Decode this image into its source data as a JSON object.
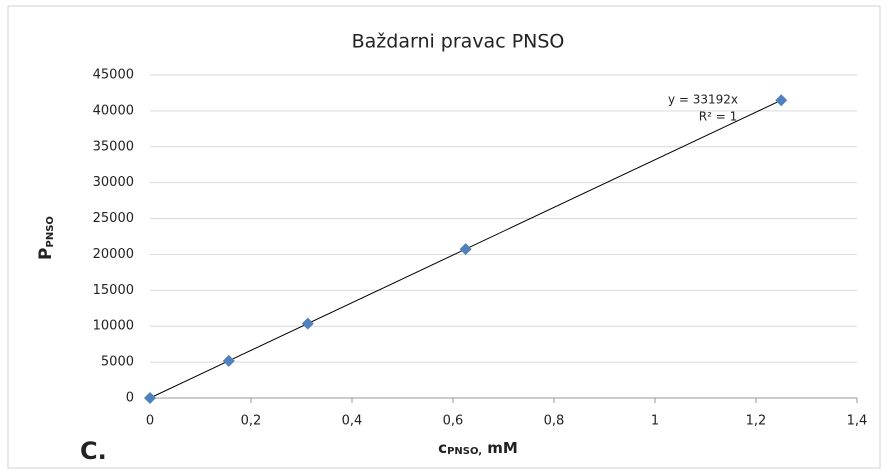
{
  "chart_data": {
    "type": "scatter",
    "title": "Baždarni pravac PNSO",
    "xlabel": "c",
    "xlabel_sub": "PNSO,",
    "xlabel_rest": " mM",
    "ylabel": "P",
    "ylabel_sub": "PNSO",
    "panel_label": "C.",
    "series": [
      {
        "name": "PNSO",
        "color": "#4f81bd",
        "x": [
          0,
          0.156,
          0.3125,
          0.625,
          1.25
        ],
        "values": [
          0,
          5180,
          10370,
          20745,
          41490
        ]
      }
    ],
    "trendline": {
      "slope": 33192,
      "color": "#000000"
    },
    "annotations": [
      "y = 33192x",
      "R² = 1"
    ],
    "xlim": [
      0,
      1.4
    ],
    "xticks": [
      0,
      {
        "value": 0.2,
        "label": "0,2"
      },
      {
        "value": 0.4,
        "label": "0,4"
      },
      {
        "value": 0.6,
        "label": "0,6"
      },
      {
        "value": 0.8,
        "label": "0,8"
      },
      1,
      {
        "value": 1.2,
        "label": "1,2"
      },
      {
        "value": 1.4,
        "label": "1,4"
      }
    ],
    "ylim": [
      0,
      45000
    ],
    "yticks": [
      0,
      5000,
      10000,
      15000,
      20000,
      25000,
      30000,
      35000,
      40000,
      45000
    ],
    "grid": true
  }
}
